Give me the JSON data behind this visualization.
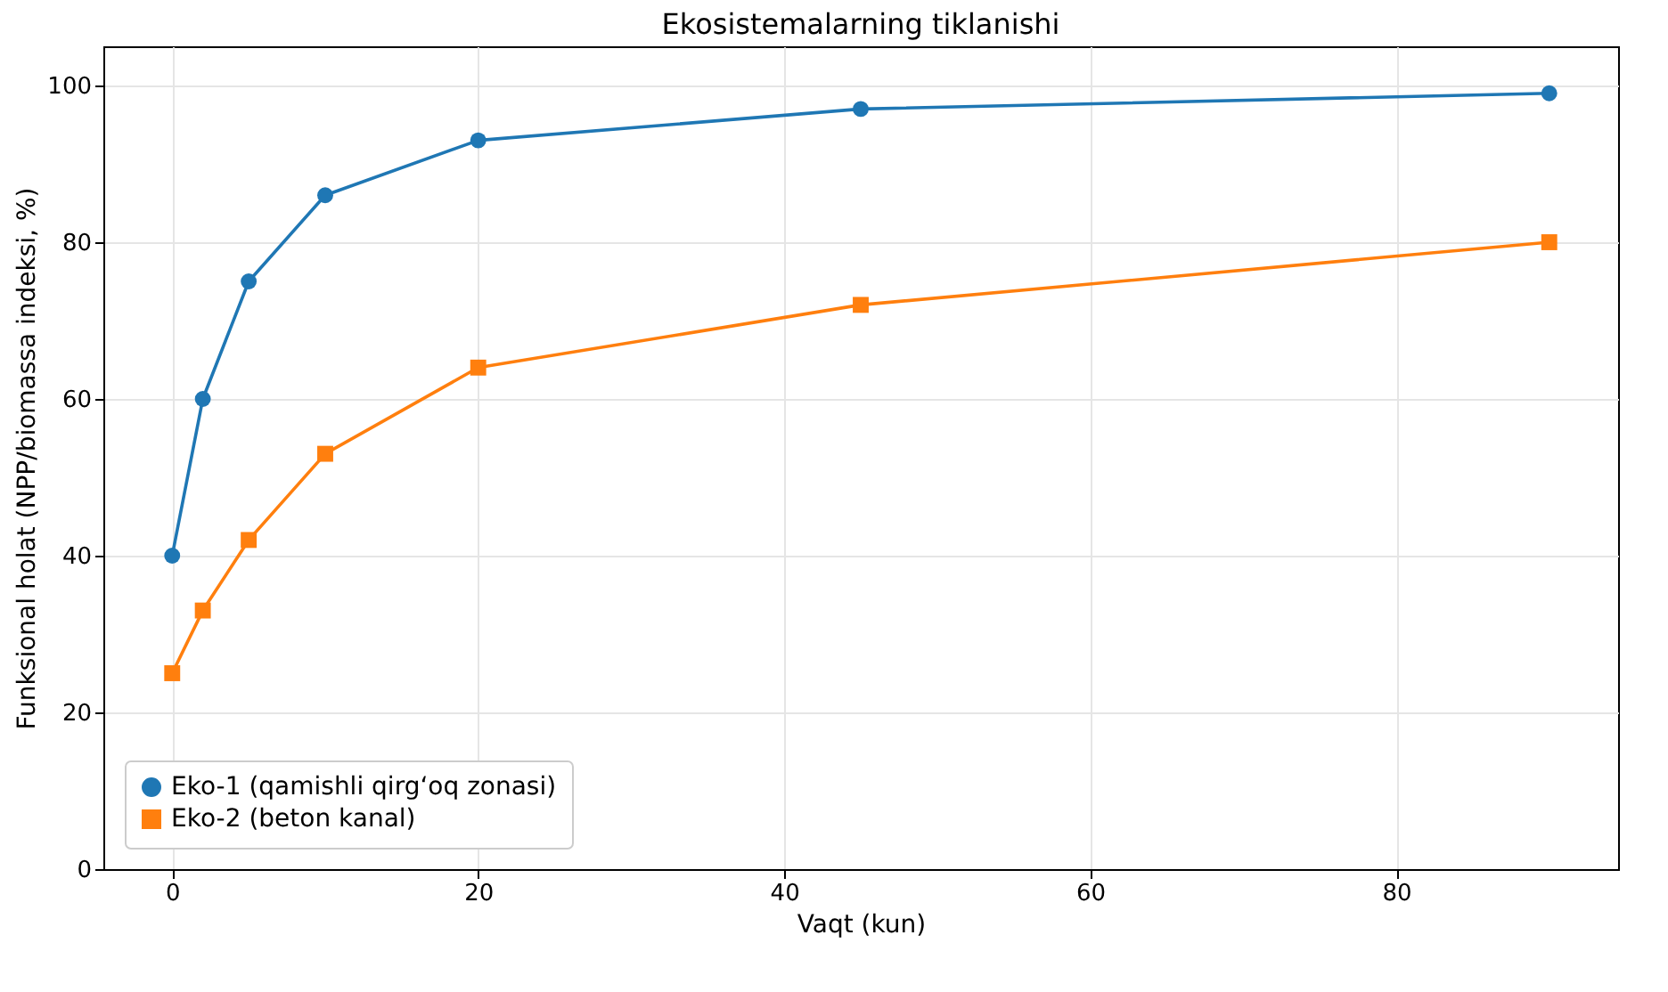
{
  "chart_data": {
    "type": "line",
    "title": "Ekosistemalarning tiklanishi",
    "xlabel": "Vaqt (kun)",
    "ylabel": "Funksional holat (NPP/biomassa indeksi, %)",
    "x": [
      0,
      2,
      5,
      10,
      20,
      45,
      90
    ],
    "series": [
      {
        "name": "Eko-1 (qamishli qirg‘oq zonasi)",
        "color": "#1f77b4",
        "marker": "circle",
        "values": [
          40,
          60,
          75,
          86,
          93,
          97,
          99
        ]
      },
      {
        "name": "Eko-2 (beton kanal)",
        "color": "#ff7f0e",
        "marker": "square",
        "values": [
          25,
          33,
          42,
          53,
          64,
          72,
          80
        ]
      }
    ],
    "xlim": [
      -4.5,
      94.5
    ],
    "xticks": [
      0,
      20,
      40,
      60,
      80
    ],
    "ylim": [
      0,
      105
    ],
    "yticks": [
      0,
      20,
      40,
      60,
      80,
      100
    ],
    "grid": true,
    "legend": "bottom left",
    "line_style": "solid"
  }
}
